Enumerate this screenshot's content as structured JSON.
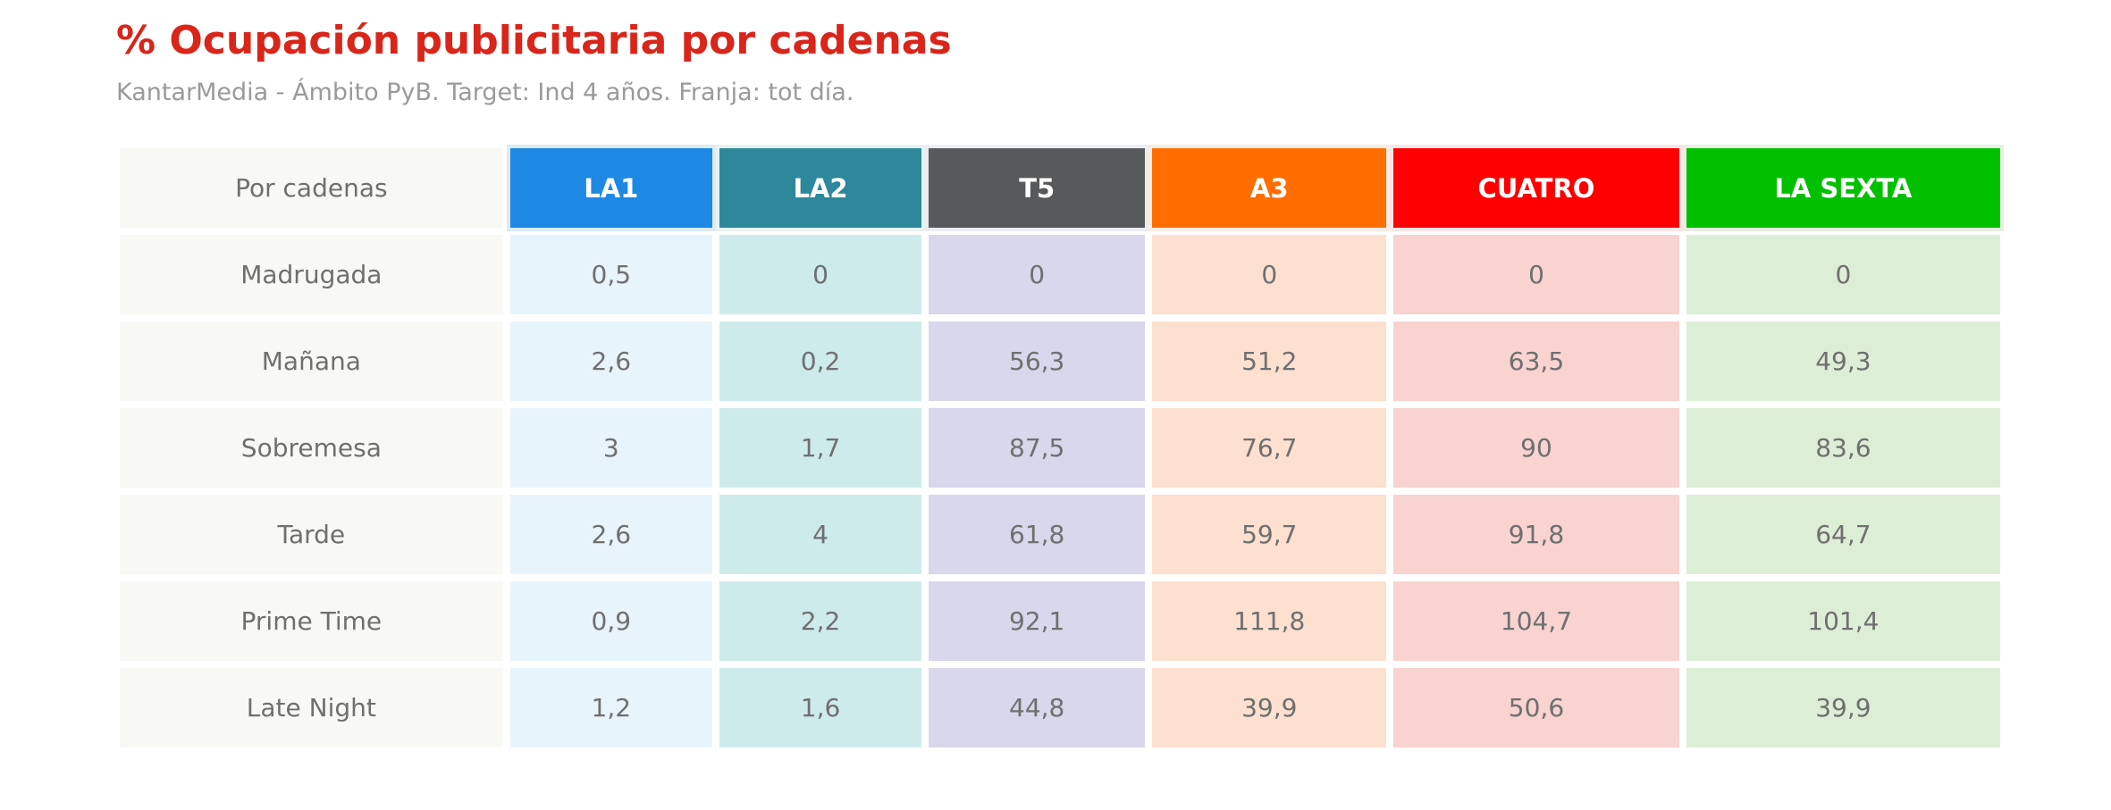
{
  "title": "% Ocupación publicitaria por cadenas",
  "subtitle": "KantarMedia - Ámbito PyB. Target: Ind 4 años. Franja: tot día.",
  "chart_data": {
    "type": "table",
    "corner_label": "Por cadenas",
    "columns": [
      {
        "label": "LA1",
        "header_color": "#1e88e5",
        "cell_color": "#e8f4fb",
        "border_color": "#dcebf3"
      },
      {
        "label": "LA2",
        "header_color": "#2e889c",
        "cell_color": "#cdebea",
        "border_color": "#e6f2f1"
      },
      {
        "label": "T5",
        "header_color": "#58595b",
        "cell_color": "#d8d7ec",
        "border_color": "#ececf3"
      },
      {
        "label": "A3",
        "header_color": "#ff6d00",
        "cell_color": "#fde0cf",
        "border_color": "#f8ece4"
      },
      {
        "label": "CUATRO",
        "header_color": "#ff0000",
        "cell_color": "#f8d3d0",
        "border_color": "#f8e6e5"
      },
      {
        "label": "LA SEXTA",
        "header_color": "#00c000",
        "cell_color": "#ddeed6",
        "border_color": "#e6f1e2"
      }
    ],
    "rows": [
      {
        "label": "Madrugada",
        "values": [
          "0,5",
          "0",
          "0",
          "0",
          "0",
          "0"
        ]
      },
      {
        "label": "Mañana",
        "values": [
          "2,6",
          "0,2",
          "56,3",
          "51,2",
          "63,5",
          "49,3"
        ]
      },
      {
        "label": "Sobremesa",
        "values": [
          "3",
          "1,7",
          "87,5",
          "76,7",
          "90",
          "83,6"
        ]
      },
      {
        "label": "Tarde",
        "values": [
          "2,6",
          "4",
          "61,8",
          "59,7",
          "91,8",
          "64,7"
        ]
      },
      {
        "label": "Prime Time",
        "values": [
          "0,9",
          "2,2",
          "92,1",
          "111,8",
          "104,7",
          "101,4"
        ]
      },
      {
        "label": "Late Night",
        "values": [
          "1,2",
          "1,6",
          "44,8",
          "39,9",
          "50,6",
          "39,9"
        ]
      }
    ]
  }
}
